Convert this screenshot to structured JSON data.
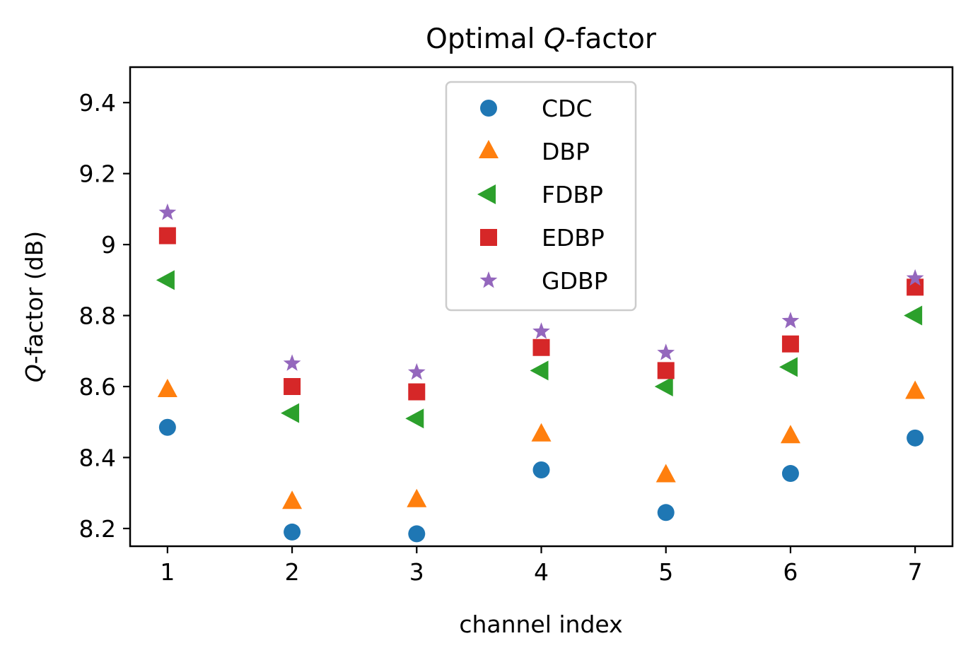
{
  "chart_data": {
    "type": "scatter",
    "title_prefix": "Optimal ",
    "title_italic": "Q",
    "title_suffix": "-factor",
    "xlabel": "channel index",
    "ylabel_italic": "Q",
    "ylabel_rest": "-factor (dB)",
    "x": [
      1,
      2,
      3,
      4,
      5,
      6,
      7
    ],
    "xlim": [
      0.7,
      7.3
    ],
    "ylim": [
      8.15,
      9.5
    ],
    "xticks": [
      1,
      2,
      3,
      4,
      5,
      6,
      7
    ],
    "yticks": [
      8.2,
      8.4,
      8.6,
      8.8,
      9.0,
      9.2,
      9.4
    ],
    "grid": false,
    "legend_position": "upper center",
    "series": [
      {
        "name": "CDC",
        "marker": "circle",
        "color": "#1f77b4",
        "values": [
          8.485,
          8.19,
          8.185,
          8.365,
          8.245,
          8.355,
          8.455
        ]
      },
      {
        "name": "DBP",
        "marker": "triangle-up",
        "color": "#ff7f0e",
        "values": [
          8.59,
          8.275,
          8.28,
          8.465,
          8.35,
          8.46,
          8.585
        ]
      },
      {
        "name": "FDBP",
        "marker": "triangle-left",
        "color": "#2ca02c",
        "values": [
          8.9,
          8.525,
          8.51,
          8.645,
          8.6,
          8.655,
          8.8
        ]
      },
      {
        "name": "EDBP",
        "marker": "square",
        "color": "#d62728",
        "values": [
          9.025,
          8.6,
          8.585,
          8.71,
          8.645,
          8.72,
          8.88
        ]
      },
      {
        "name": "GDBP",
        "marker": "star",
        "color": "#9467bd",
        "values": [
          9.09,
          8.665,
          8.64,
          8.755,
          8.695,
          8.785,
          8.905
        ]
      }
    ]
  }
}
